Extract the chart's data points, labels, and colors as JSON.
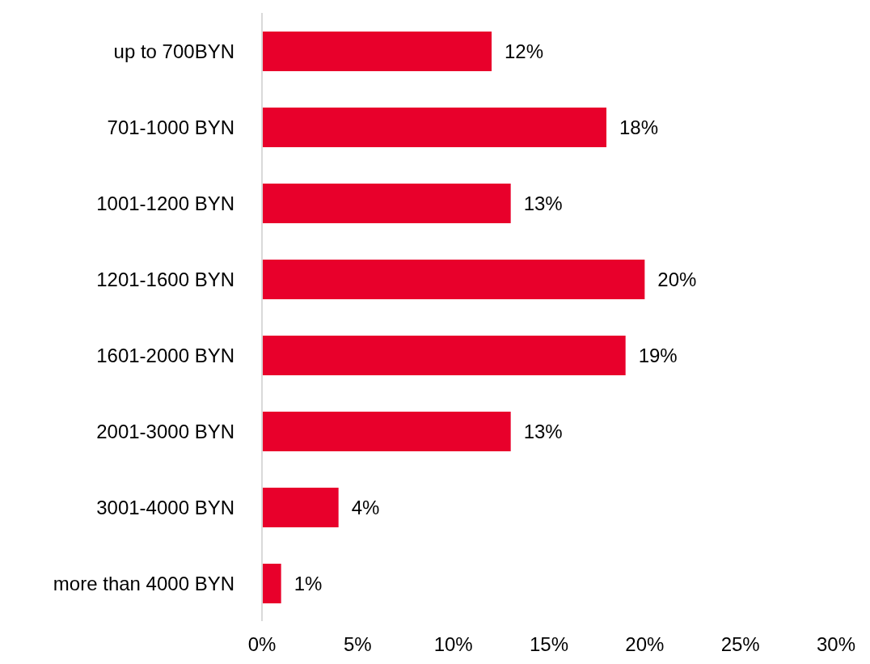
{
  "chart_data": {
    "type": "bar",
    "orientation": "horizontal",
    "categories": [
      "up to 700BYN",
      "701-1000 BYN",
      "1001-1200 BYN",
      "1201-1600 BYN",
      "1601-2000 BYN",
      "2001-3000 BYN",
      "3001-4000 BYN",
      "more than 4000 BYN"
    ],
    "values": [
      12,
      18,
      13,
      20,
      19,
      13,
      4,
      1
    ],
    "value_labels": [
      "12%",
      "18%",
      "13%",
      "20%",
      "19%",
      "13%",
      "4%",
      "1%"
    ],
    "color": "#e8002b",
    "xlim": [
      0,
      30
    ],
    "xticks": [
      {
        "value": 0,
        "label": "0%"
      },
      {
        "value": 5,
        "label": "5%"
      },
      {
        "value": 10,
        "label": "10%"
      },
      {
        "value": 15,
        "label": "15%"
      },
      {
        "value": 20,
        "label": "20%"
      },
      {
        "value": 25,
        "label": "25%"
      },
      {
        "value": 30,
        "label": "30%"
      }
    ],
    "grid": false,
    "legend": false
  }
}
